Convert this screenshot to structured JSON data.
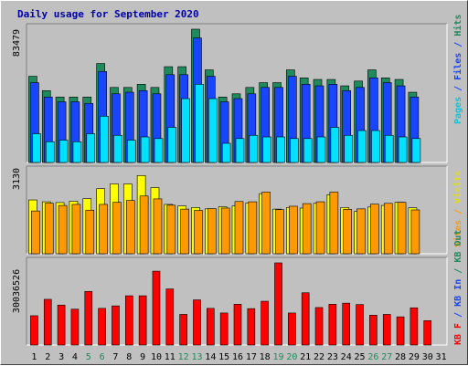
{
  "title": "Daily usage for September 2020",
  "chart_data": [
    {
      "type": "bar",
      "panel": "pages-files-hits",
      "categories": [
        "1",
        "2",
        "3",
        "4",
        "5",
        "6",
        "7",
        "8",
        "9",
        "10",
        "11",
        "12",
        "13",
        "14",
        "15",
        "16",
        "17",
        "18",
        "19",
        "20",
        "21",
        "22",
        "23",
        "24",
        "25",
        "26",
        "27",
        "28",
        "29",
        "30",
        "31"
      ],
      "ylabel_max": "83479",
      "ylim": [
        0,
        83479
      ],
      "series": [
        {
          "name": "Hits",
          "color": "#1f8a5c",
          "values": [
            54000,
            45000,
            41000,
            41000,
            41000,
            62000,
            47000,
            47000,
            49000,
            47000,
            60000,
            60000,
            83479,
            58000,
            41000,
            43000,
            47000,
            50000,
            50000,
            58000,
            53000,
            52000,
            52000,
            48000,
            51000,
            58000,
            53000,
            52000,
            44000,
            null,
            null
          ]
        },
        {
          "name": "Files",
          "color": "#1a45ff",
          "values": [
            50000,
            41000,
            38000,
            38000,
            37000,
            57000,
            43000,
            44000,
            45000,
            43000,
            55000,
            55000,
            78000,
            54000,
            38000,
            40000,
            43000,
            47000,
            47000,
            54000,
            49000,
            48000,
            49000,
            45000,
            47000,
            53000,
            50000,
            48000,
            41000,
            null,
            null
          ]
        },
        {
          "name": "Pages",
          "color": "#00e0ff",
          "values": [
            18000,
            13000,
            14000,
            13000,
            18000,
            29000,
            17000,
            14000,
            16000,
            15000,
            22000,
            40000,
            49000,
            40000,
            12000,
            15000,
            17000,
            16000,
            16000,
            15000,
            15000,
            16000,
            22000,
            17000,
            20000,
            20000,
            17000,
            16000,
            15000,
            null,
            null
          ]
        }
      ]
    },
    {
      "type": "bar",
      "panel": "visits-sites",
      "categories": [
        "1",
        "2",
        "3",
        "4",
        "5",
        "6",
        "7",
        "8",
        "9",
        "10",
        "11",
        "12",
        "13",
        "14",
        "15",
        "16",
        "17",
        "18",
        "19",
        "20",
        "21",
        "22",
        "23",
        "24",
        "25",
        "26",
        "27",
        "28",
        "29",
        "30",
        "31"
      ],
      "ylabel_max": "3130",
      "ylim": [
        0,
        3130
      ],
      "series": [
        {
          "name": "Visits",
          "color": "#ffff00",
          "values": [
            2050,
            1980,
            1950,
            2000,
            2100,
            2480,
            2660,
            2660,
            2980,
            2520,
            1880,
            1820,
            1760,
            1710,
            1790,
            1820,
            1930,
            2290,
            1700,
            1760,
            1740,
            1920,
            2250,
            1760,
            1610,
            1780,
            1840,
            1960,
            1750,
            null,
            null
          ]
        },
        {
          "name": "Sites",
          "color": "#ff9900",
          "values": [
            1630,
            1930,
            1840,
            1880,
            1660,
            1880,
            1960,
            2030,
            2200,
            2090,
            1850,
            1700,
            1650,
            1720,
            1740,
            1990,
            1980,
            2350,
            1680,
            1810,
            1910,
            1980,
            2350,
            1690,
            1710,
            1890,
            1920,
            1960,
            1670,
            null,
            null
          ]
        }
      ]
    },
    {
      "type": "bar",
      "panel": "kbf-kbin-kbout",
      "categories": [
        "1",
        "2",
        "3",
        "4",
        "5",
        "6",
        "7",
        "8",
        "9",
        "10",
        "11",
        "12",
        "13",
        "14",
        "15",
        "16",
        "17",
        "18",
        "19",
        "20",
        "21",
        "22",
        "23",
        "24",
        "25",
        "26",
        "27",
        "28",
        "29",
        "30",
        "31"
      ],
      "ylabel_max": "30036526",
      "ylim": [
        0,
        30036526
      ],
      "series": [
        {
          "name": "KB F",
          "color": "#ff0000",
          "values": [
            10700,
            16700,
            14600,
            13100,
            19600,
            13400,
            14300,
            18000,
            18000,
            27000,
            20500,
            11200,
            16500,
            13400,
            11700,
            14900,
            13300,
            16000,
            30036,
            11700,
            19100,
            13700,
            14900,
            15300,
            14800,
            10900,
            11200,
            10300,
            13600,
            8900,
            null
          ]
        }
      ]
    }
  ],
  "legend_top": [
    {
      "label": "Pages",
      "color": "#00c8e0"
    },
    {
      "label": " / ",
      "color": "#1a45ff"
    },
    {
      "label": "Files",
      "color": "#1a45ff"
    },
    {
      "label": " / ",
      "color": "#1a45ff"
    },
    {
      "label": "Hits",
      "color": "#1f8a5c"
    }
  ],
  "legend_mid": [
    {
      "label": "Sites",
      "color": "#ff9900"
    },
    {
      "label": " / ",
      "color": "#ff9900"
    },
    {
      "label": "Visits",
      "color": "#e0e000"
    }
  ],
  "legend_bot": [
    {
      "label": "KB F",
      "color": "#ff0000"
    },
    {
      "label": " / ",
      "color": "#1a45ff"
    },
    {
      "label": "KB In",
      "color": "#1a45ff"
    },
    {
      "label": " / ",
      "color": "#1f8a5c"
    },
    {
      "label": "KB Out",
      "color": "#1f8a5c"
    }
  ],
  "weekend_days": [
    "5",
    "6",
    "12",
    "13",
    "19",
    "20",
    "26",
    "27"
  ],
  "weekday_color": "#000000",
  "weekend_color": "#1f8a5c"
}
